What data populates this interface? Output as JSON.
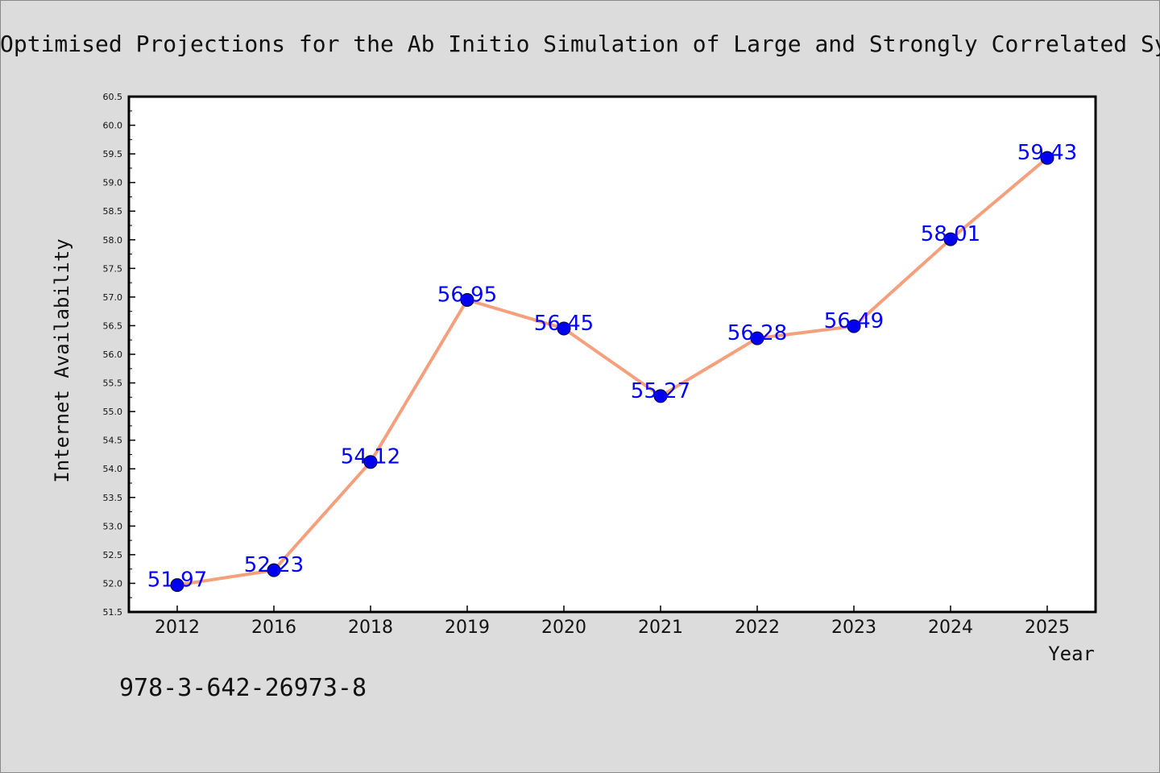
{
  "chart_data": {
    "type": "line",
    "title": "Optimised Projections for the Ab Initio Simulation of Large and Strongly Correlated Systems",
    "xlabel": "Year",
    "ylabel": "Internet Availability",
    "footer": "978-3-642-26973-8",
    "categories": [
      "2012",
      "2016",
      "2018",
      "2019",
      "2020",
      "2021",
      "2022",
      "2023",
      "2024",
      "2025"
    ],
    "series": [
      {
        "values": [
          51.97,
          52.23,
          54.12,
          56.95,
          56.45,
          55.27,
          56.28,
          56.49,
          58.01,
          59.43
        ],
        "data_labels": [
          "51.97",
          "52.23",
          "54.12",
          "56.95",
          "56.45",
          "55.27",
          "56.28",
          "56.49",
          "58.01",
          "59.43"
        ]
      }
    ],
    "ylim": [
      51.5,
      60.5
    ],
    "yticks": [
      "51.5",
      "52.0",
      "52.5",
      "53.0",
      "53.5",
      "54.0",
      "54.5",
      "55.0",
      "55.5",
      "56.0",
      "56.5",
      "57.0",
      "57.5",
      "58.0",
      "58.5",
      "59.0",
      "59.5",
      "60.0",
      "60.5"
    ],
    "grid": false,
    "legend": "none",
    "colors": {
      "background": "#dcdcdc",
      "plot_background": "#ffffff",
      "line": "#f4a07c",
      "marker": "#0000ee",
      "data_label": "#0000ff",
      "text": "#111111"
    }
  }
}
